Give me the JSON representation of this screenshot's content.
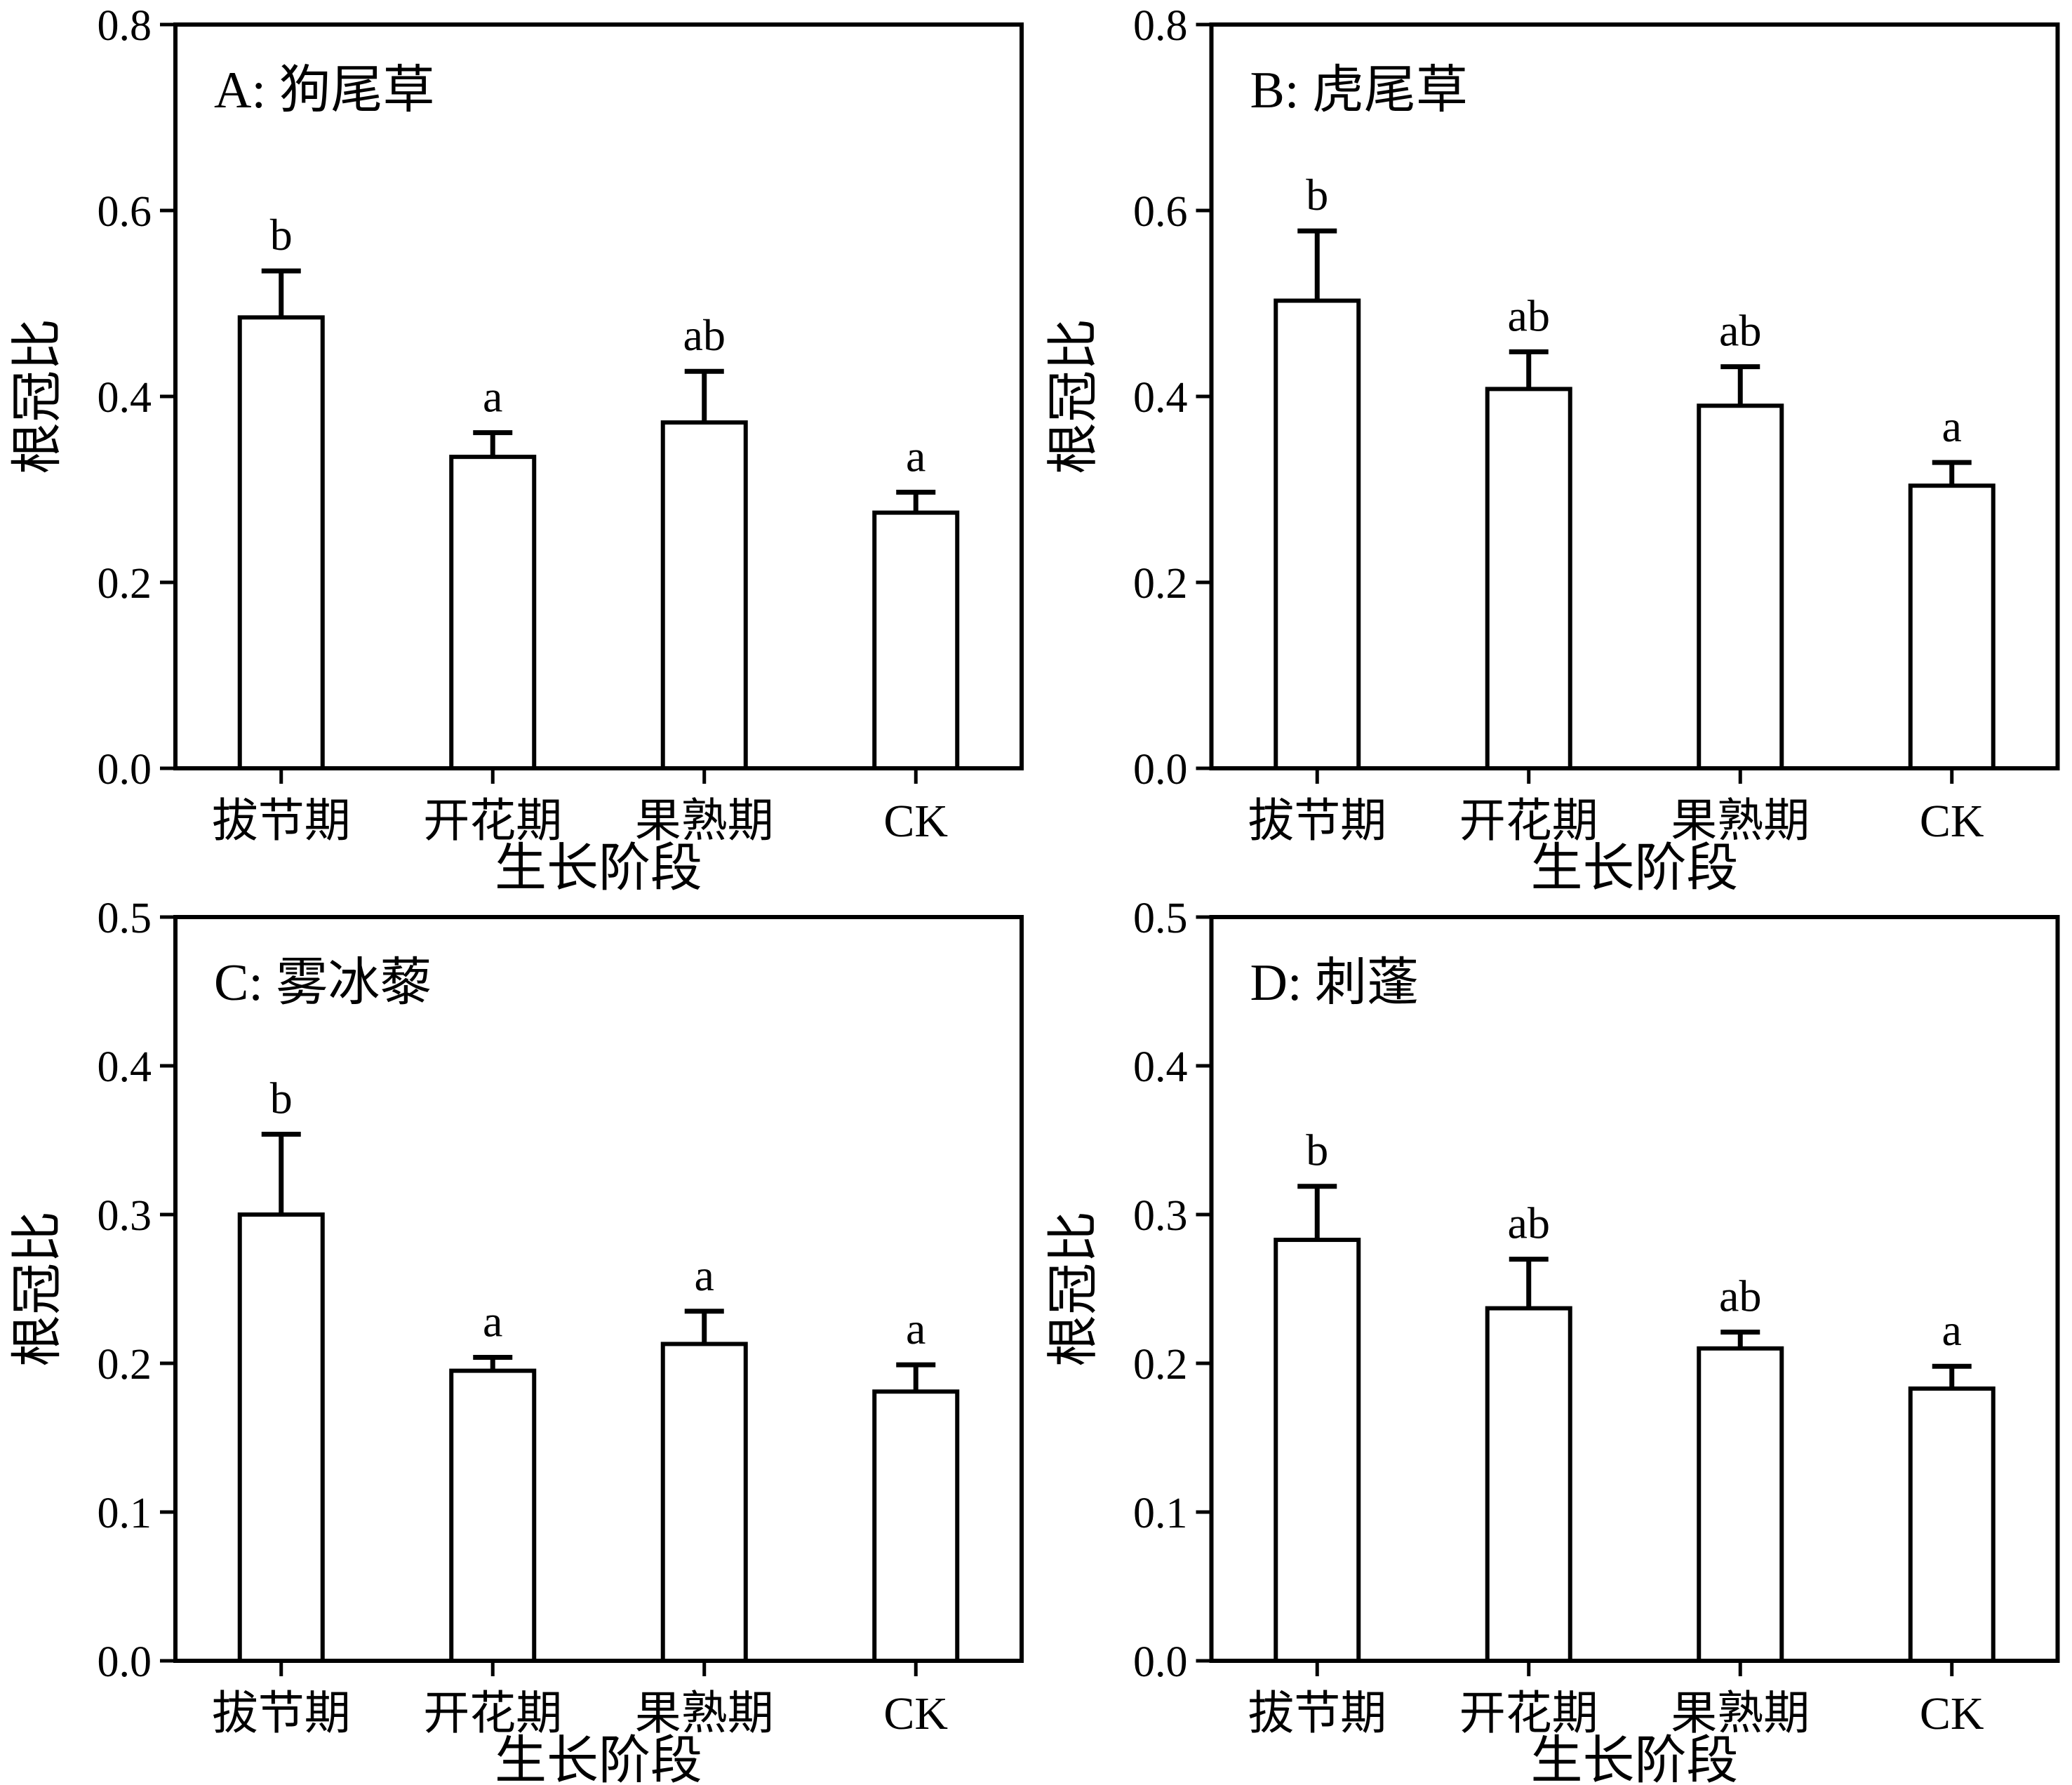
{
  "figure": {
    "background": "#ffffff",
    "stroke_color": "#000000",
    "bar_fill": "#ffffff",
    "ylabel": "根冠比",
    "xlabel": "生长阶段",
    "categories": [
      "拔节期",
      "开花期",
      "果熟期",
      "CK"
    ]
  },
  "chart_data": [
    {
      "type": "bar",
      "panel_label": "A: 狗尾草",
      "categories": [
        "拔节期",
        "开花期",
        "果熟期",
        "CK"
      ],
      "values": [
        0.485,
        0.335,
        0.372,
        0.275
      ],
      "errors": [
        0.05,
        0.026,
        0.055,
        0.022
      ],
      "sig_letters": [
        "b",
        "a",
        "ab",
        "a"
      ],
      "ylabel": "根冠比",
      "xlabel": "生长阶段",
      "ylim": [
        0.0,
        0.8
      ],
      "ytick_labels": [
        "0.0",
        "0.2",
        "0.4",
        "0.6",
        "0.8"
      ],
      "grid": "off",
      "legend": "none"
    },
    {
      "type": "bar",
      "panel_label": "B: 虎尾草",
      "categories": [
        "拔节期",
        "开花期",
        "果熟期",
        "CK"
      ],
      "values": [
        0.503,
        0.408,
        0.39,
        0.304
      ],
      "errors": [
        0.075,
        0.04,
        0.042,
        0.025
      ],
      "sig_letters": [
        "b",
        "ab",
        "ab",
        "a"
      ],
      "ylabel": "根冠比",
      "xlabel": "生长阶段",
      "ylim": [
        0.0,
        0.8
      ],
      "ytick_labels": [
        "0.0",
        "0.2",
        "0.4",
        "0.6",
        "0.8"
      ],
      "grid": "off",
      "legend": "none"
    },
    {
      "type": "bar",
      "panel_label": "C: 雾冰藜",
      "categories": [
        "拔节期",
        "开花期",
        "果熟期",
        "CK"
      ],
      "values": [
        0.3,
        0.195,
        0.213,
        0.181
      ],
      "errors": [
        0.054,
        0.009,
        0.022,
        0.018
      ],
      "sig_letters": [
        "b",
        "a",
        "a",
        "a"
      ],
      "ylabel": "根冠比",
      "xlabel": "生长阶段",
      "ylim": [
        0.0,
        0.5
      ],
      "ytick_labels": [
        "0.0",
        "0.1",
        "0.2",
        "0.3",
        "0.4",
        "0.5"
      ],
      "grid": "off",
      "legend": "none"
    },
    {
      "type": "bar",
      "panel_label": "D: 刺蓬",
      "categories": [
        "拔节期",
        "开花期",
        "果熟期",
        "CK"
      ],
      "values": [
        0.283,
        0.237,
        0.21,
        0.183
      ],
      "errors": [
        0.036,
        0.033,
        0.011,
        0.015
      ],
      "sig_letters": [
        "b",
        "ab",
        "ab",
        "a"
      ],
      "ylabel": "根冠比",
      "xlabel": "生长阶段",
      "ylim": [
        0.0,
        0.5
      ],
      "ytick_labels": [
        "0.0",
        "0.1",
        "0.2",
        "0.3",
        "0.4",
        "0.5"
      ],
      "grid": "off",
      "legend": "none"
    }
  ]
}
